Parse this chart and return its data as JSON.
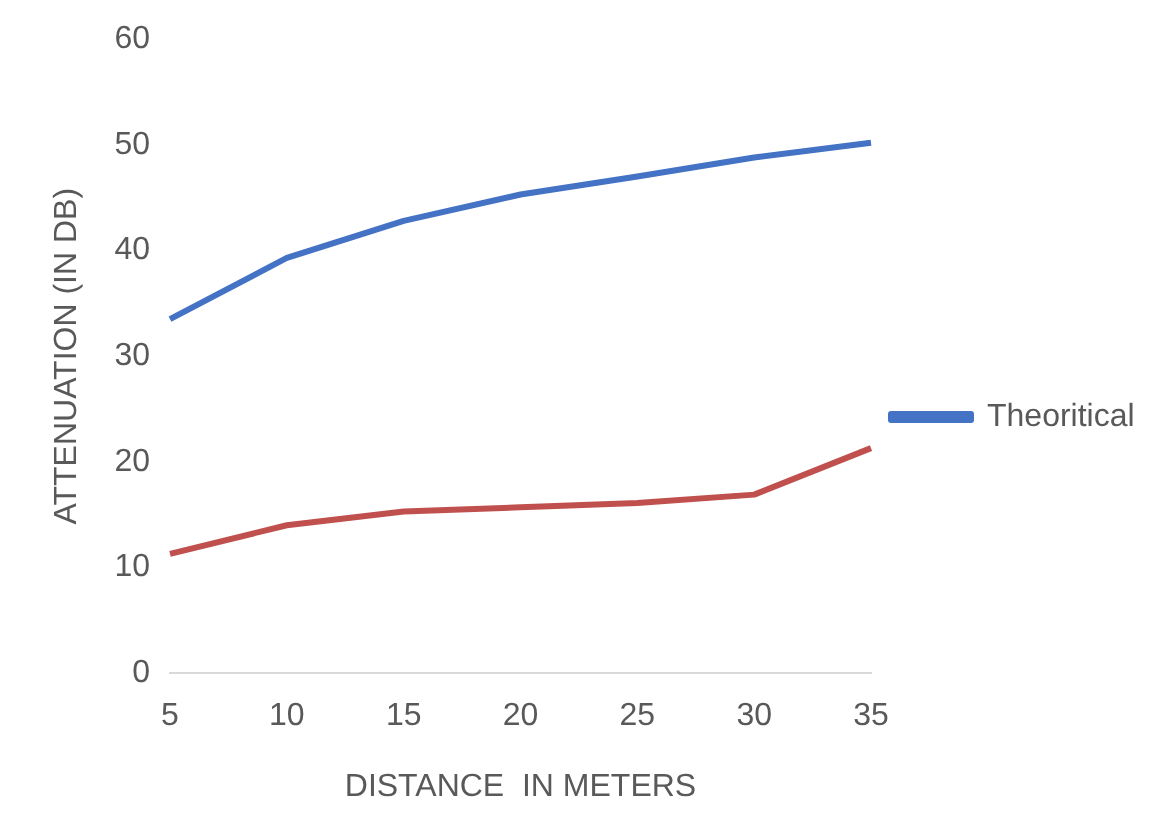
{
  "chart_data": {
    "type": "line",
    "xlabel": "DISTANCE  IN METERS",
    "ylabel": "ATTENUATION (IN DB)",
    "categories": [
      "5",
      "10",
      "15",
      "20",
      "25",
      "30",
      "35"
    ],
    "series": [
      {
        "name": "Theoritical",
        "color": "#4472c4",
        "values": [
          33.5,
          39.3,
          42.8,
          45.3,
          47,
          48.8,
          50.2
        ]
      },
      {
        "color": "#c0504d",
        "values": [
          11.3,
          14,
          15.3,
          15.7,
          16.1,
          16.9,
          21.3
        ]
      }
    ],
    "ylim": [
      0,
      60
    ],
    "yticks": [
      0,
      10,
      20,
      30,
      40,
      50,
      60
    ],
    "grid": false,
    "legend": "right",
    "marker": "none",
    "line_style": "solid"
  }
}
